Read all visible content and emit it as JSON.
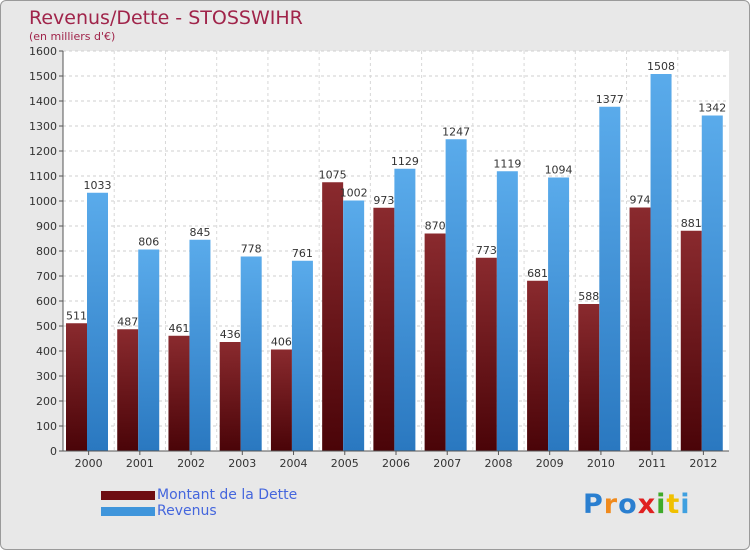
{
  "chart_data": {
    "type": "bar",
    "title": "Revenus/Dette - STOSSWIHR",
    "subtitle": "(en milliers d'€)",
    "categories": [
      "2000",
      "2001",
      "2002",
      "2003",
      "2004",
      "2005",
      "2006",
      "2007",
      "2008",
      "2009",
      "2010",
      "2011",
      "2012"
    ],
    "series": [
      {
        "name": "Montant de la Dette",
        "values": [
          511,
          487,
          461,
          436,
          406,
          1075,
          973,
          870,
          773,
          681,
          588,
          974,
          881
        ],
        "color": "#6e0d12"
      },
      {
        "name": "Revenus",
        "values": [
          1033,
          806,
          845,
          778,
          761,
          1002,
          1129,
          1247,
          1119,
          1094,
          1377,
          1508,
          1342
        ],
        "color": "#3f95db"
      }
    ],
    "ylim": [
      0,
      1600
    ],
    "yticks": [
      0,
      100,
      200,
      300,
      400,
      500,
      600,
      700,
      800,
      900,
      1000,
      1100,
      1200,
      1300,
      1400,
      1500,
      1600
    ],
    "grid": true,
    "legend_position": "bottom-left"
  },
  "logo": {
    "text": "Proxiti",
    "letters": [
      "P",
      "r",
      "o",
      "x",
      "i",
      "t",
      "i"
    ],
    "colors": [
      "#2a7fd0",
      "#f08a1c",
      "#2a7fd0",
      "#e02020",
      "#3faa2a",
      "#f0c000",
      "#3fa0e0"
    ]
  }
}
